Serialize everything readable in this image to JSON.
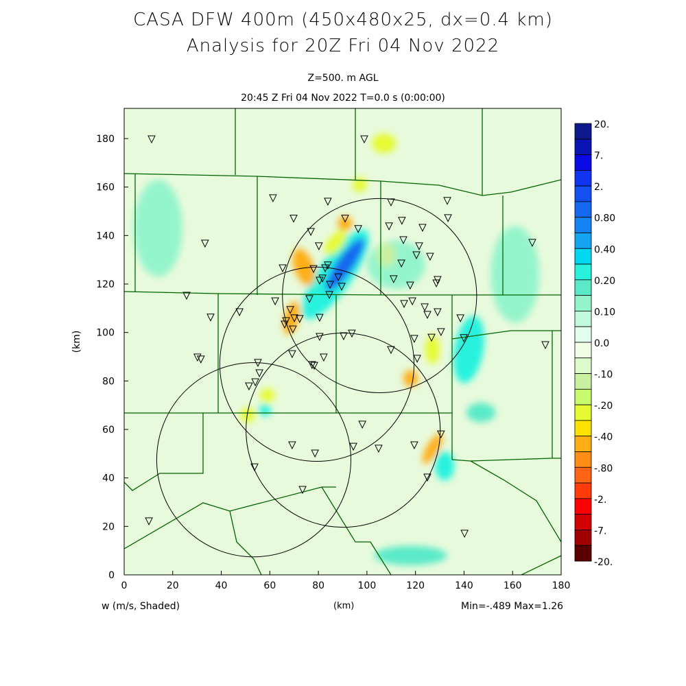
{
  "header": {
    "title_line1": "CASA DFW 400m (450x480x25, dx=0.4 km)",
    "title_line2": "Analysis for 20Z Fri 04 Nov 2022",
    "level": "Z=500. m AGL",
    "valid_time": "20:45 Z Fri 04 Nov 2022    T=0.0 s (0:00:00)"
  },
  "footer": {
    "variable": "w (m/s, Shaded)",
    "xunit": "(km)",
    "minmax": "Min=-.489 Max=1.26"
  },
  "chart_data": {
    "type": "heatmap",
    "title": "CASA DFW 400m (450x480x25, dx=0.4 km)",
    "subtitle": "Analysis for 20Z Fri 04 Nov 2022",
    "xlabel": "(km)",
    "ylabel": "(km)",
    "xlim": [
      0,
      180
    ],
    "ylim": [
      0,
      192
    ],
    "x_ticks": [
      "0",
      "20",
      "40",
      "60",
      "80",
      "100",
      "120",
      "140",
      "160",
      "180"
    ],
    "y_ticks": [
      "0",
      "20",
      "40",
      "60",
      "80",
      "100",
      "120",
      "140",
      "160",
      "180"
    ],
    "variable": "w (m/s)",
    "min": -0.489,
    "max": 1.26,
    "colorbar": {
      "labels": [
        "20.",
        "7.",
        "2.",
        "0.80",
        "0.40",
        "0.20",
        "0.10",
        "0.0",
        "-.10",
        "-.20",
        "-.40",
        "-.80",
        "-2.",
        "-7.",
        "-20."
      ],
      "levels": [
        20,
        7,
        2,
        0.8,
        0.4,
        0.2,
        0.1,
        0,
        -0.1,
        -0.2,
        -0.4,
        -0.8,
        -2,
        -7,
        -20
      ],
      "colors": [
        "#0c1a8c",
        "#0a14b4",
        "#0a0ae6",
        "#1034f0",
        "#1450f0",
        "#1468f0",
        "#1482f0",
        "#14a4f0",
        "#00d8f2",
        "#28f2de",
        "#5aeac8",
        "#94f4cc",
        "#c2f8dc",
        "#e2fcee",
        "#f0fce4",
        "#dcfacb",
        "#c8f0a0",
        "#c8fa6e",
        "#e6fa32",
        "#ffe100",
        "#ffae14",
        "#ff8c14",
        "#ff6414",
        "#ff3c0a",
        "#ff0000",
        "#d20000",
        "#a00000",
        "#5a0000"
      ]
    },
    "field_features": [
      {
        "x": 87,
        "y": 124,
        "rx": 22,
        "ry": 7,
        "rot": -55,
        "value": 0.3
      },
      {
        "x": 91,
        "y": 128,
        "rx": 13,
        "ry": 3.5,
        "rot": -55,
        "value": 1.0
      },
      {
        "x": 74,
        "y": 127,
        "rx": 4,
        "ry": 8,
        "rot": -20,
        "value": -0.4
      },
      {
        "x": 91,
        "y": 145,
        "rx": 3,
        "ry": 3,
        "rot": 0,
        "value": -0.4
      },
      {
        "x": 87,
        "y": 137,
        "rx": 6,
        "ry": 3,
        "rot": -50,
        "value": -0.3
      },
      {
        "x": 69,
        "y": 106,
        "rx": 3,
        "ry": 7,
        "rot": 15,
        "value": -0.4
      },
      {
        "x": 118,
        "y": 81,
        "rx": 3,
        "ry": 3.5,
        "rot": 0,
        "value": -0.5
      },
      {
        "x": 127,
        "y": 52,
        "rx": 2.5,
        "ry": 7,
        "rot": 30,
        "value": -0.4
      },
      {
        "x": 142,
        "y": 93,
        "rx": 6,
        "ry": 14,
        "rot": 10,
        "value": 0.3
      },
      {
        "x": 132,
        "y": 45,
        "rx": 4,
        "ry": 6,
        "rot": 0,
        "value": 0.3
      },
      {
        "x": 59,
        "y": 74,
        "rx": 3,
        "ry": 3,
        "rot": 0,
        "value": -0.3
      },
      {
        "x": 51,
        "y": 66,
        "rx": 3,
        "ry": 3,
        "rot": 0,
        "value": -0.3
      },
      {
        "x": 58,
        "y": 68,
        "rx": 2.5,
        "ry": 2.5,
        "rot": 0,
        "value": 0.3
      },
      {
        "x": 118,
        "y": 8,
        "rx": 15,
        "ry": 4,
        "rot": 0,
        "value": 0.2
      },
      {
        "x": 107,
        "y": 178,
        "rx": 5,
        "ry": 4,
        "rot": 0,
        "value": -0.2
      },
      {
        "x": 97,
        "y": 161,
        "rx": 3,
        "ry": 3,
        "rot": 0,
        "value": -0.25
      },
      {
        "x": 147,
        "y": 67,
        "rx": 6,
        "ry": 4,
        "rot": 0,
        "value": 0.2
      },
      {
        "x": 127,
        "y": 93,
        "rx": 3,
        "ry": 6,
        "rot": 0,
        "value": -0.2
      },
      {
        "x": 161,
        "y": 124,
        "rx": 10,
        "ry": 20,
        "rot": 0,
        "value": 0.15
      },
      {
        "x": 14,
        "y": 143,
        "rx": 10,
        "ry": 20,
        "rot": 0,
        "value": 0.15
      },
      {
        "x": 112,
        "y": 128,
        "rx": 12,
        "ry": 10,
        "rot": 0,
        "value": 0.12
      },
      {
        "x": 108,
        "y": 132,
        "rx": 4,
        "ry": 5,
        "rot": 0,
        "value": -0.15
      }
    ],
    "range_rings_km": [
      {
        "x": 105.2,
        "y": 115.2,
        "r": 40
      },
      {
        "x": 79.4,
        "y": 86.9,
        "r": 40
      },
      {
        "x": 90.2,
        "y": 59.7,
        "r": 40
      },
      {
        "x": 53.4,
        "y": 47.5,
        "r": 40
      }
    ],
    "stations_km": [
      [
        61.3,
        155.4
      ],
      [
        83.9,
        154.0
      ],
      [
        109.9,
        153.7
      ],
      [
        133.1,
        154.3
      ],
      [
        69.8,
        147.0
      ],
      [
        91.0,
        147.0
      ],
      [
        114.4,
        146.1
      ],
      [
        133.4,
        147.2
      ],
      [
        109.1,
        143.8
      ],
      [
        96.4,
        142.7
      ],
      [
        122.9,
        143.2
      ],
      [
        76.9,
        141.5
      ],
      [
        115.0,
        138.1
      ],
      [
        80.2,
        135.6
      ],
      [
        121.5,
        135.6
      ],
      [
        120.4,
        131.9
      ],
      [
        126.0,
        131.3
      ],
      [
        114.2,
        128.5
      ],
      [
        65.3,
        126.5
      ],
      [
        78.0,
        126.2
      ],
      [
        83.9,
        127.7
      ],
      [
        82.8,
        126.5
      ],
      [
        81.7,
        122.3
      ],
      [
        80.5,
        121.4
      ],
      [
        88.2,
        122.8
      ],
      [
        111.0,
        122.0
      ],
      [
        129.1,
        121.7
      ],
      [
        128.6,
        120.3
      ],
      [
        84.8,
        119.7
      ],
      [
        89.6,
        118.9
      ],
      [
        117.8,
        119.4
      ],
      [
        84.5,
        115.5
      ],
      [
        62.2,
        112.9
      ],
      [
        76.3,
        113.8
      ],
      [
        115.3,
        111.8
      ],
      [
        118.7,
        112.9
      ],
      [
        123.8,
        110.4
      ],
      [
        124.9,
        107.3
      ],
      [
        129.1,
        108.4
      ],
      [
        138.5,
        105.9
      ],
      [
        68.4,
        109.3
      ],
      [
        70.1,
        105.9
      ],
      [
        72.3,
        105.6
      ],
      [
        66.7,
        104.7
      ],
      [
        66.1,
        103.3
      ],
      [
        69.5,
        101.3
      ],
      [
        80.5,
        106.1
      ],
      [
        130.5,
        100.2
      ],
      [
        139.9,
        97.7
      ],
      [
        119.5,
        97.4
      ],
      [
        126.6,
        97.9
      ],
      [
        80.5,
        98.2
      ],
      [
        90.4,
        98.5
      ],
      [
        93.8,
        99.6
      ],
      [
        109.9,
        92.8
      ],
      [
        120.7,
        89.2
      ],
      [
        69.2,
        91.1
      ],
      [
        82.2,
        89.7
      ],
      [
        77.4,
        86.6
      ],
      [
        78.3,
        86.3
      ],
      [
        11.3,
        179.7
      ],
      [
        98.9,
        179.7
      ],
      [
        33.3,
        136.7
      ],
      [
        168.1,
        137.0
      ],
      [
        25.7,
        115.2
      ],
      [
        35.6,
        106.2
      ],
      [
        47.5,
        108.4
      ],
      [
        173.5,
        94.8
      ],
      [
        30.2,
        89.7
      ],
      [
        31.6,
        88.9
      ],
      [
        55.1,
        87.5
      ],
      [
        55.7,
        83.2
      ],
      [
        54.0,
        79.5
      ],
      [
        51.4,
        77.8
      ],
      [
        98.1,
        62.0
      ],
      [
        130.5,
        58.0
      ],
      [
        119.5,
        53.5
      ],
      [
        104.8,
        52.1
      ],
      [
        94.4,
        52.9
      ],
      [
        78.6,
        50.1
      ],
      [
        69.2,
        53.5
      ],
      [
        53.7,
        44.4
      ],
      [
        124.9,
        40.2
      ],
      [
        73.5,
        35.1
      ],
      [
        10.2,
        22.1
      ],
      [
        140.2,
        17.0
      ]
    ]
  }
}
